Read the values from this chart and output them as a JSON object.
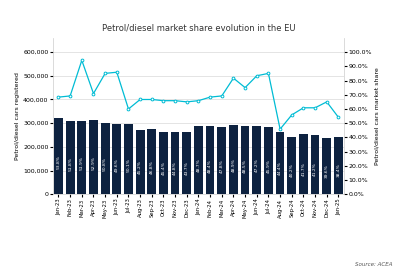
{
  "title": "Petrol/diesel market share evolution in the EU",
  "categories": [
    "Jan-23",
    "Feb-23",
    "Mar-23",
    "Apr-23",
    "May-23",
    "Jun-23",
    "Jul-23",
    "Aug-23",
    "Sep-23",
    "Oct-23",
    "Nov-23",
    "Dec-23",
    "Jan-24",
    "Feb-24",
    "Mar-24",
    "Apr-24",
    "May-24",
    "Jun-24",
    "Jul-24",
    "Aug-24",
    "Sep-24",
    "Oct-24",
    "Nov-24",
    "Dec-24",
    "Jan-25"
  ],
  "bar_values": [
    320000,
    308000,
    310000,
    315000,
    302000,
    298000,
    298000,
    270000,
    275000,
    265000,
    265000,
    262000,
    290000,
    288000,
    285000,
    292000,
    287000,
    290000,
    282000,
    265000,
    243000,
    255000,
    250000,
    238000,
    240000
  ],
  "line_values": [
    410000,
    415000,
    565000,
    425000,
    510000,
    515000,
    360000,
    400000,
    400000,
    395000,
    395000,
    390000,
    395000,
    410000,
    415000,
    490000,
    450000,
    500000,
    510000,
    275000,
    335000,
    365000,
    365000,
    390000,
    325000
  ],
  "bar_percentages": [
    "53.8%",
    "51.8%",
    "51.9%",
    "52.9%",
    "50.8%",
    "49.6%",
    "50.1%",
    "45.2%",
    "46.8%",
    "45.4%",
    "44.8%",
    "43.7%",
    "48.7%",
    "48.4%",
    "47.8%",
    "48.9%",
    "48.5%",
    "47.2%",
    "45.9%",
    "44.4%",
    "40.2%",
    "41.7%",
    "41.2%",
    "39.6%",
    "38.4%"
  ],
  "bar_color": "#0d2240",
  "line_color": "#00bcd4",
  "ylabel_left": "Petrol/diesel cars registered",
  "ylabel_right": "Petrol/diesel cars market share",
  "ylim_left": [
    0,
    660000
  ],
  "ylim_right": [
    0.0,
    1.1
  ],
  "yticks_left": [
    0,
    100000,
    200000,
    300000,
    400000,
    500000,
    600000
  ],
  "yticks_right": [
    0.0,
    0.1,
    0.2,
    0.3,
    0.4,
    0.5,
    0.6,
    0.7,
    0.8,
    0.9,
    1.0
  ],
  "legend_bar": "Petrol/diesel cars market share",
  "legend_line": "Petrol/diesel cars registered",
  "source_text": "Source: ACEA"
}
